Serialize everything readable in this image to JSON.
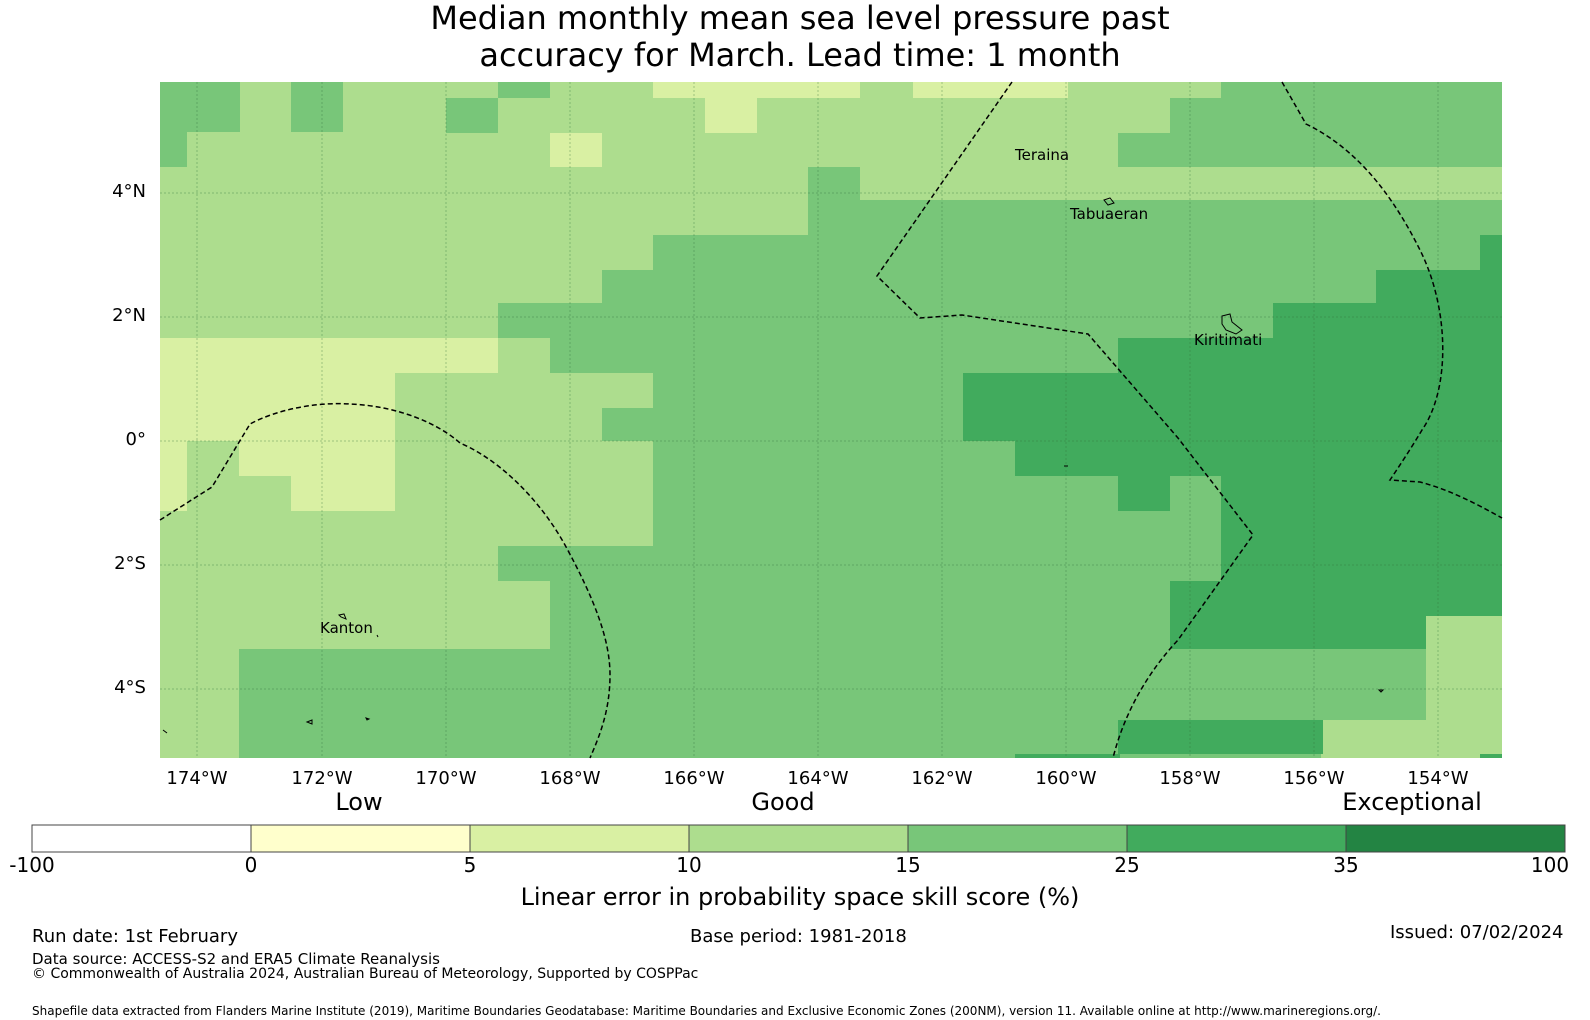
{
  "title": {
    "line1": "Median monthly mean sea level pressure past",
    "line2": "accuracy for March. Lead time: 1 month"
  },
  "map": {
    "lat_labels": [
      "4°N",
      "2°N",
      "0°",
      "2°S",
      "4°S"
    ],
    "lon_labels": [
      "174°W",
      "172°W",
      "170°W",
      "168°W",
      "166°W",
      "164°W",
      "162°W",
      "160°W",
      "158°W",
      "156°W",
      "154°W"
    ],
    "places": {
      "teraina": "Teraina",
      "tabuaeran": "Tabuaeran",
      "kiritimati": "Kiritimati",
      "kanton": "Kanton"
    }
  },
  "legend": {
    "categories": {
      "low": "Low",
      "good": "Good",
      "exceptional": "Exceptional"
    },
    "ticks": [
      "-100",
      "0",
      "5",
      "10",
      "15",
      "25",
      "35",
      "100"
    ],
    "colors": [
      "#ffffff",
      "#ffffcc",
      "#d9f0a3",
      "#addd8e",
      "#78c679",
      "#41ab5d",
      "#238443"
    ],
    "title": "Linear error in probability space skill score (%)"
  },
  "footer": {
    "run_date": "Run date: 1st February",
    "base_period": "Base period: 1981-2018",
    "issued": "Issued: 07/02/2024",
    "data_source": "Data source: ACCESS-S2 and ERA5 Climate Reanalysis",
    "copyright": "© Commonwealth of Australia 2024, Australian Bureau of Meteorology, Supported by COSPPac",
    "shapefile": "Shapefile data extracted from Flanders Marine Institute (2019), Maritime Boundaries Geodatabase: Maritime Boundaries and Exclusive Economic Zones (200NM), version 11. Available online at http://www.marineregions.org/."
  }
}
